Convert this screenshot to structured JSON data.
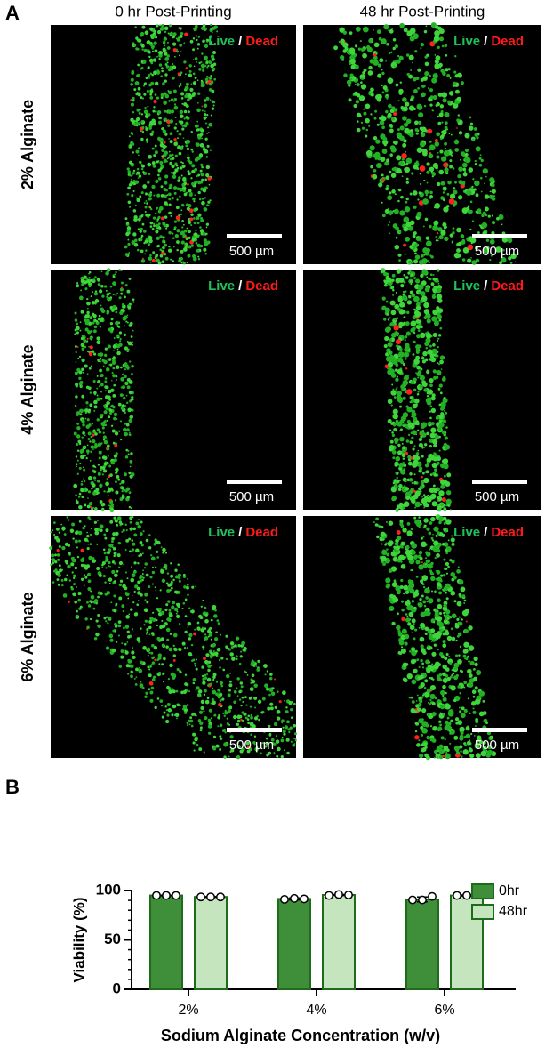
{
  "panel_a": {
    "label": "A",
    "columns": [
      "0 hr Post-Printing",
      "48 hr Post-Printing"
    ],
    "rows": [
      "2% Alginate",
      "4% Alginate",
      "6% Alginate"
    ],
    "live": "Live",
    "slash": "/",
    "dead": "Dead",
    "scale_bar": "500 µm"
  },
  "chart_data": {
    "type": "bar",
    "panel_label": "B",
    "xlabel": "Sodium Alginate Concentration (w/v)",
    "ylabel": "Viability (%)",
    "categories": [
      "2%",
      "4%",
      "6%"
    ],
    "series": [
      {
        "name": "0hr",
        "color": "#3f8f3a",
        "values": [
          95,
          91.5,
          91
        ],
        "errors": [
          0.3,
          1,
          2.5
        ],
        "points": [
          [
            95,
            95,
            95
          ],
          [
            91,
            92,
            91.5
          ],
          [
            90.5,
            90.5,
            94
          ]
        ]
      },
      {
        "name": "48hr",
        "color": "#c5e5bf",
        "values": [
          93.5,
          95.5,
          95
        ],
        "errors": [
          0.3,
          0.5,
          0.5
        ],
        "points": [
          [
            93.5,
            93.5,
            93.5
          ],
          [
            95,
            96,
            95.5
          ],
          [
            95,
            95,
            95.5
          ]
        ]
      }
    ],
    "ylim": [
      0,
      100
    ],
    "yticks": [
      0,
      50,
      100
    ],
    "minor_yticks": [
      10,
      20,
      30,
      40,
      60,
      70,
      80,
      90
    ],
    "legend": "upper right"
  }
}
